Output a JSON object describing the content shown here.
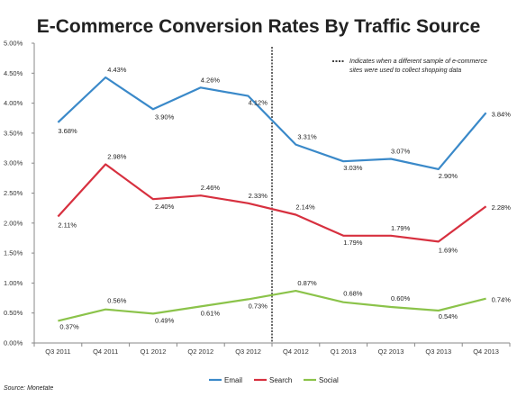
{
  "chart_data": {
    "type": "line",
    "title": "E-Commerce Conversion Rates By Traffic Source",
    "categories": [
      "Q3 2011",
      "Q4 2011",
      "Q1 2012",
      "Q2 2012",
      "Q3 2012",
      "Q4 2012",
      "Q1 2013",
      "Q2 2013",
      "Q3 2013",
      "Q4 2013"
    ],
    "y_ticks": [
      "0.00%",
      "0.50%",
      "1.00%",
      "1.50%",
      "2.00%",
      "2.50%",
      "3.00%",
      "3.50%",
      "4.00%",
      "4.50%",
      "5.00%"
    ],
    "ylim": [
      0,
      5
    ],
    "series": [
      {
        "name": "Email",
        "color": "#3a89c9",
        "values": [
          3.68,
          4.43,
          3.9,
          4.26,
          4.12,
          3.31,
          3.03,
          3.07,
          2.9,
          3.84
        ],
        "labels": [
          "3.68%",
          "4.43%",
          "3.90%",
          "4.26%",
          "4.12%",
          "3.31%",
          "3.03%",
          "3.07%",
          "2.90%",
          "3.84%"
        ]
      },
      {
        "name": "Search",
        "color": "#d7303f",
        "values": [
          2.11,
          2.98,
          2.4,
          2.46,
          2.33,
          2.14,
          1.79,
          1.79,
          1.69,
          2.28
        ],
        "labels": [
          "2.11%",
          "2.98%",
          "2.40%",
          "2.46%",
          "2.33%",
          "2.14%",
          "1.79%",
          "1.79%",
          "1.69%",
          "2.28%"
        ]
      },
      {
        "name": "Social",
        "color": "#8bc34a",
        "values": [
          0.37,
          0.56,
          0.49,
          0.61,
          0.73,
          0.87,
          0.68,
          0.6,
          0.54,
          0.74
        ],
        "labels": [
          "0.37%",
          "0.56%",
          "0.49%",
          "0.61%",
          "0.73%",
          "0.87%",
          "0.68%",
          "0.60%",
          "0.54%",
          "0.74%"
        ]
      }
    ],
    "divider_between": [
      "Q3 2012",
      "Q4 2012"
    ],
    "annotation": {
      "line1": "Indicates when a different sample of e-commerce",
      "line2": "sites were used to collect shopping data"
    },
    "legend_position": "bottom-center",
    "grid": false,
    "source": "Source: Monetate"
  }
}
